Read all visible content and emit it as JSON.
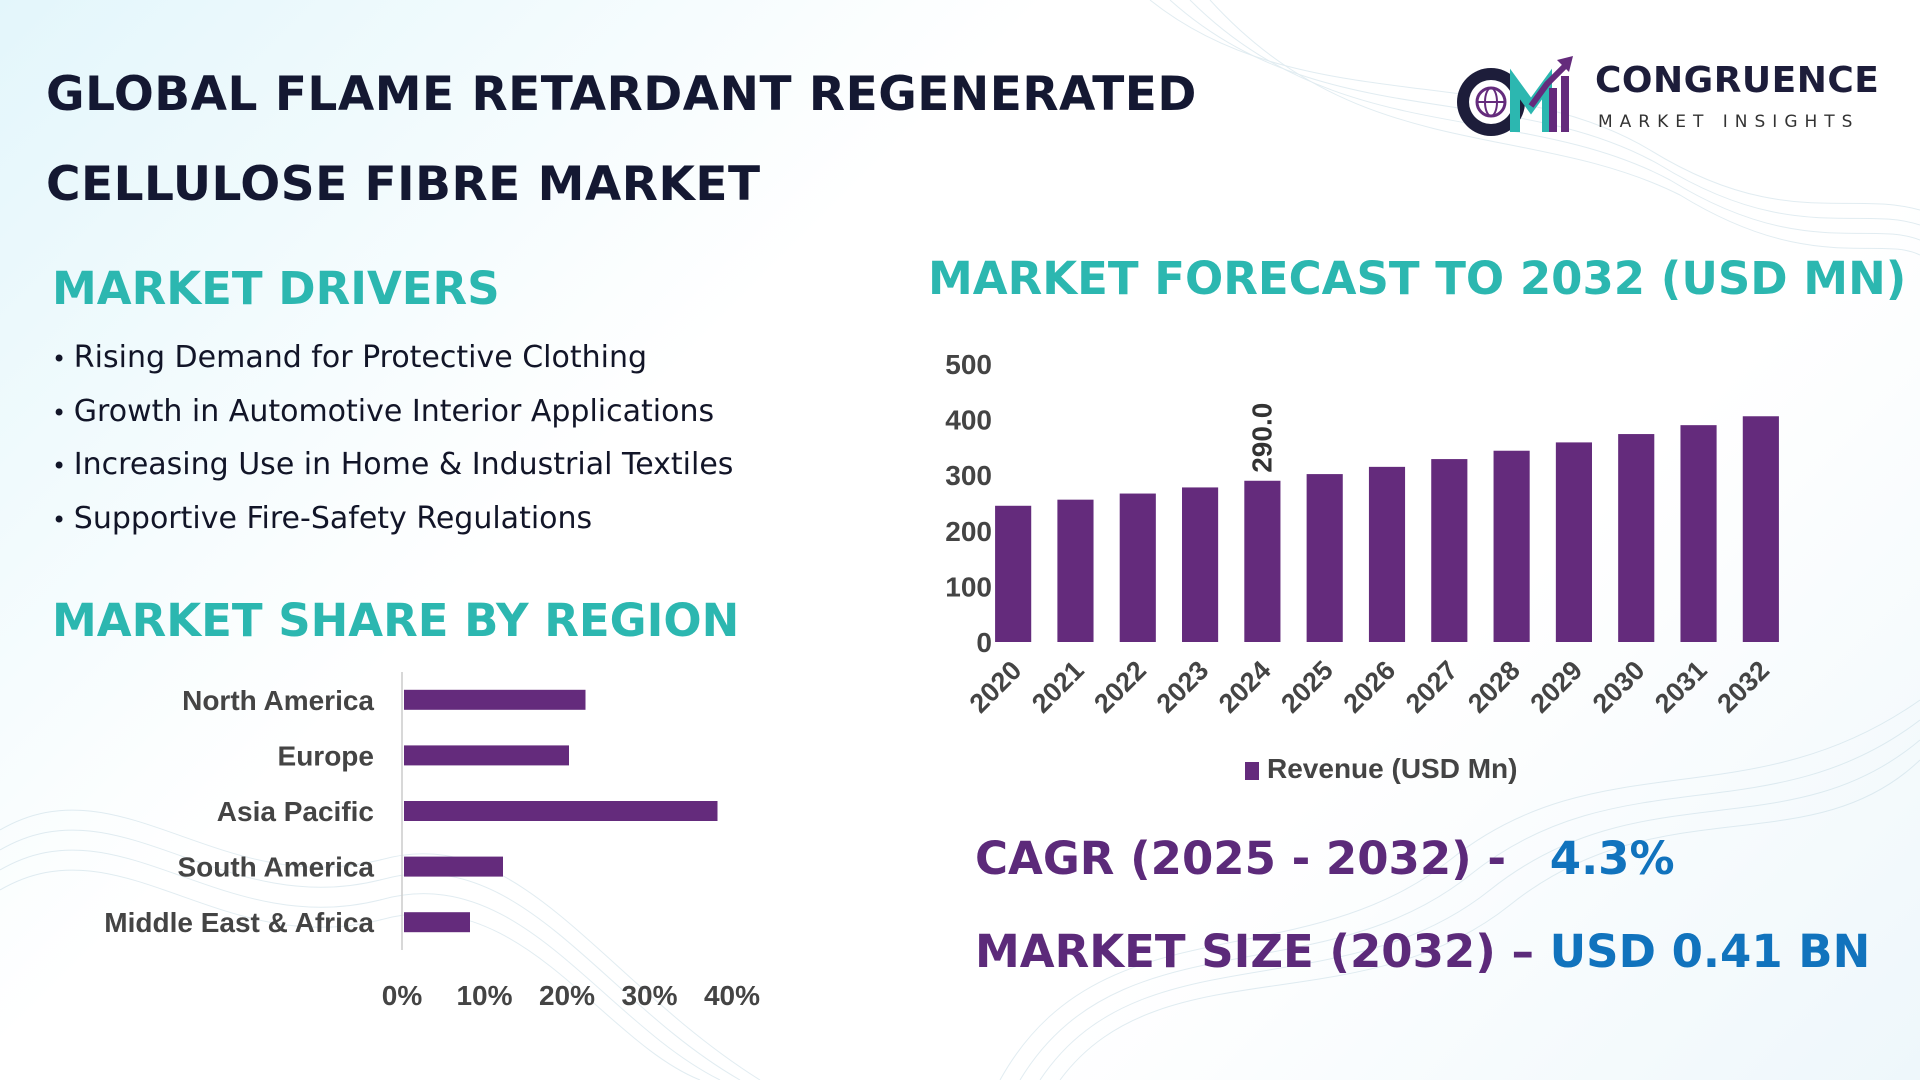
{
  "title": {
    "line1": "GLOBAL FLAME RETARDANT REGENERATED",
    "line2": "CELLULOSE FIBRE MARKET"
  },
  "logo": {
    "name": "CONGRUENCE",
    "tagline": "MARKET INSIGHTS",
    "icon": "cmi-globe-growth-logo"
  },
  "drivers": {
    "heading": "MARKET DRIVERS",
    "items": [
      "Rising Demand for Protective Clothing",
      "Growth in Automotive Interior Applications",
      "Increasing Use in Home & Industrial Textiles",
      "Supportive Fire-Safety Regulations"
    ]
  },
  "region_heading": "MARKET SHARE BY REGION",
  "forecast_heading": "MARKET FORECAST TO 2032 (USD MN)",
  "stats": {
    "cagr_label": "CAGR (2025 - 2032) -",
    "cagr_value": "4.3%",
    "size_label": "MARKET SIZE (2032) –",
    "size_value": "USD 0.41 BN"
  },
  "colors": {
    "bar": "#642b7c",
    "heading": "#2cb7b0",
    "title": "#141832",
    "stat_label": "#5c2a7a",
    "stat_value": "#1173bd"
  },
  "chart_data": [
    {
      "type": "bar",
      "orientation": "vertical",
      "categories": [
        "2020",
        "2021",
        "2022",
        "2023",
        "2024",
        "2025",
        "2026",
        "2027",
        "2028",
        "2029",
        "2030",
        "2031",
        "2032"
      ],
      "series": [
        {
          "name": "Revenue (USD Mn)",
          "values": [
            245,
            256,
            267,
            278,
            290,
            302,
            315,
            329,
            344,
            359,
            374,
            390,
            406
          ]
        }
      ],
      "data_labels": [
        {
          "category": "2024",
          "text": "290.0"
        }
      ],
      "yticks": [
        "0",
        "100",
        "200",
        "300",
        "400",
        "500"
      ],
      "ylim": [
        0,
        500
      ],
      "grid": false,
      "legend_position": "bottom"
    },
    {
      "type": "bar",
      "orientation": "horizontal",
      "categories": [
        "North America",
        "Europe",
        "Asia Pacific",
        "South America",
        "Middle East & Africa"
      ],
      "values": [
        22,
        20,
        38,
        12,
        8
      ],
      "unit": "%",
      "xticks": [
        "0%",
        "10%",
        "20%",
        "30%",
        "40%"
      ],
      "xlim": [
        0,
        40
      ],
      "grid": false
    }
  ]
}
